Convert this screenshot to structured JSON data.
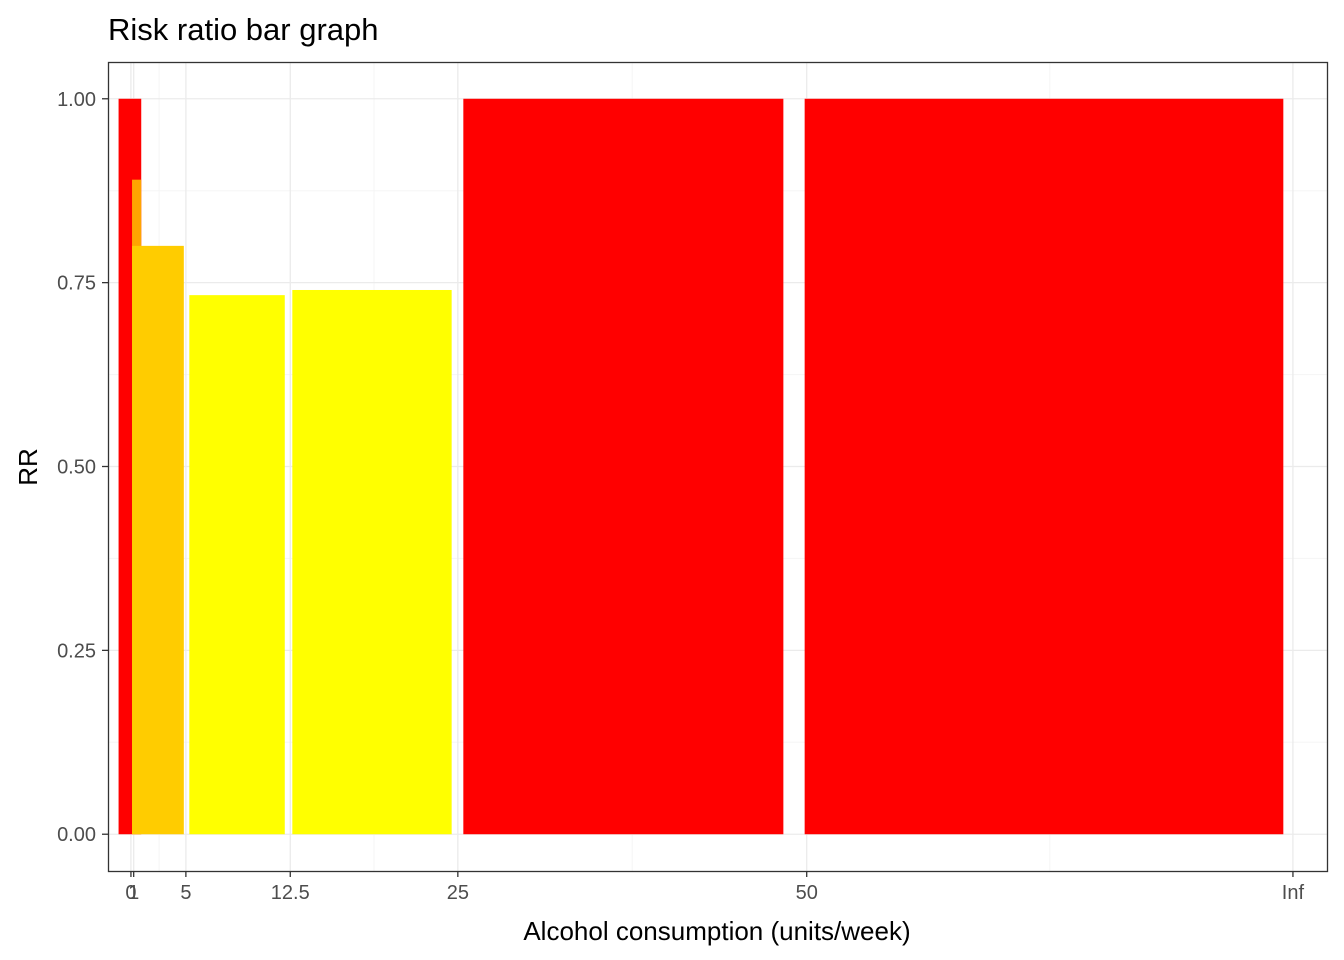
{
  "chart_data": {
    "type": "bar",
    "title": "Risk ratio bar graph",
    "xlabel": "Alcohol consumption (units/week)",
    "ylabel": "RR",
    "xlim": [
      -1.67,
      87.08
    ],
    "ylim": [
      -0.05,
      1.05
    ],
    "x_tick_labels": [
      "0",
      "1",
      "5",
      "12.5",
      "25",
      "50",
      "Inf"
    ],
    "x_tick_positions": [
      0,
      0.2,
      4,
      11.6,
      23.8,
      49.2,
      84.6
    ],
    "x_minor_grid": [
      2.05,
      17.7,
      36.5,
      66.9
    ],
    "y_ticks": [
      0,
      0.25,
      0.5,
      0.75,
      1
    ],
    "y_tick_labels": [
      "0.00",
      "0.25",
      "0.50",
      "0.75",
      "1.00"
    ],
    "y_minor_grid": [
      0.125,
      0.375,
      0.625,
      0.875
    ],
    "grid": true,
    "legend": "none",
    "bars": [
      {
        "x0": -0.9,
        "x1": 0.75,
        "value": 1.0,
        "color": "#FF0000"
      },
      {
        "x0": 0.08,
        "x1": 0.75,
        "value": 0.89,
        "color": "#FFA500"
      },
      {
        "x0": 0.08,
        "x1": 3.85,
        "value": 0.8,
        "color": "#FFCC00"
      },
      {
        "x0": 4.25,
        "x1": 11.2,
        "value": 0.733,
        "color": "#FFFF00"
      },
      {
        "x0": 11.75,
        "x1": 23.35,
        "value": 0.74,
        "color": "#FFFF00"
      },
      {
        "x0": 24.2,
        "x1": 47.5,
        "value": 1.0,
        "color": "#FF0000"
      },
      {
        "x0": 49.05,
        "x1": 83.9,
        "value": 1.0,
        "color": "#FF0000"
      }
    ]
  },
  "colors": {
    "panel_border": "#333333",
    "major_grid": "#ebebeb",
    "minor_grid": "#f5f5f5",
    "tick_text": "#4d4d4d",
    "tick_mark": "#333333"
  }
}
